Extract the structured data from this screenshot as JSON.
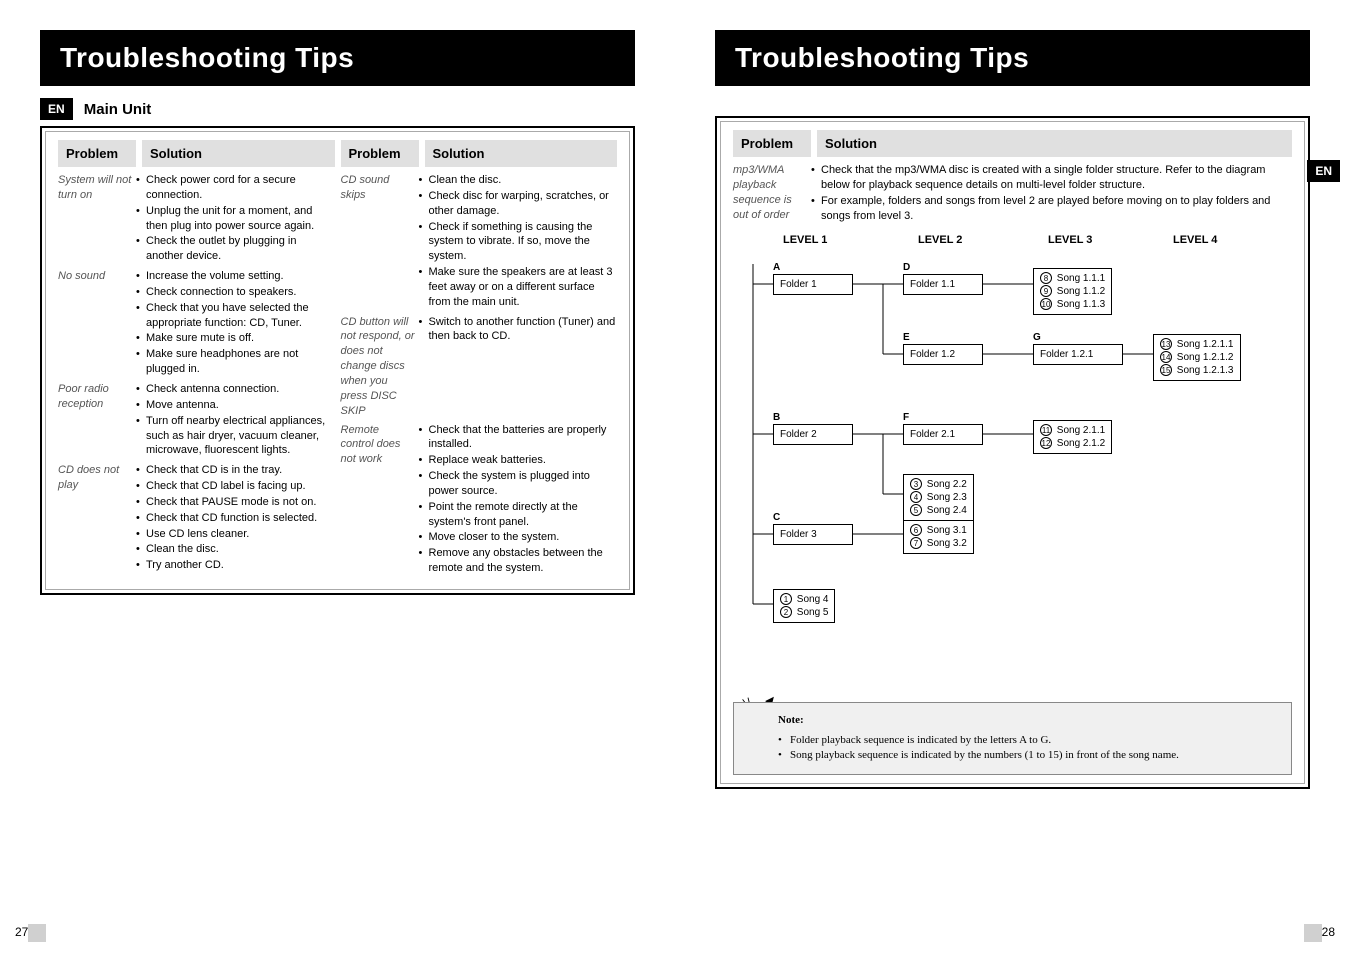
{
  "titles": {
    "left": "Troubleshooting Tips",
    "right": "Troubleshooting Tips"
  },
  "lang_badge": "EN",
  "section_main_unit": "Main Unit",
  "col_head_problem": "Problem",
  "col_head_solution": "Solution",
  "left_col1": [
    {
      "p": "System will not turn on",
      "s": [
        "Check power cord for a secure connection.",
        "Unplug the unit for a moment, and then plug into power source again.",
        "Check the outlet by plugging in another device."
      ]
    },
    {
      "p": "No sound",
      "s": [
        "Increase the volume setting.",
        "Check connection to speakers.",
        "Check that you have selected the appropriate function: CD, Tuner.",
        "Make sure mute is off.",
        "Make sure headphones are not plugged in."
      ]
    },
    {
      "p": "Poor radio reception",
      "s": [
        "Check antenna connection.",
        "Move antenna.",
        "Turn off nearby electrical appliances, such as hair dryer, vacuum cleaner, microwave, fluorescent lights."
      ]
    },
    {
      "p": "CD does not play",
      "s": [
        "Check that CD is in the tray.",
        "Check that CD label is facing up.",
        "Check that PAUSE mode is not on.",
        "Check that CD function is selected.",
        "Use CD lens cleaner.",
        "Clean the disc.",
        "Try another CD."
      ]
    }
  ],
  "left_col2": [
    {
      "p": "CD sound skips",
      "s": [
        "Clean the disc.",
        "Check disc for warping, scratches, or other damage.",
        "Check if something is causing the system to  vibrate. If so, move the  system.",
        "Make sure the speakers are at least 3 feet away or on a different surface from the main unit."
      ]
    },
    {
      "p": "CD button will not respond, or does not change discs when you press DISC SKIP",
      "s": [
        "Switch to another function (Tuner) and then back to CD."
      ]
    },
    {
      "p": "Remote control does not work",
      "s": [
        "Check that the batteries are properly installed.",
        "Replace weak batteries.",
        "Check the system is plugged into power source.",
        "Point the remote directly at the system's front panel.",
        "Move closer to the system.",
        "Remove any obstacles between the remote and the system."
      ]
    }
  ],
  "right_problem": "mp3/WMA playback sequence is out of order",
  "right_solution": [
    "Check that the mp3/WMA disc is created with a single folder structure. Refer to the diagram below for playback sequence details on multi-level folder structure.",
    "For example, folders and songs from level 2 are played before moving on to play folders and songs from level 3."
  ],
  "levels": {
    "l1": "LEVEL 1",
    "l2": "LEVEL 2",
    "l3": "LEVEL 3",
    "l4": "LEVEL 4"
  },
  "diagram": {
    "letters": {
      "A": "A",
      "B": "B",
      "C": "C",
      "D": "D",
      "E": "E",
      "F": "F",
      "G": "G"
    },
    "folder1": "Folder 1",
    "folder2": "Folder 2",
    "folder3": "Folder 3",
    "folder11": "Folder 1.1",
    "folder12": "Folder 1.2",
    "folder21": "Folder 2.1",
    "folder121": "Folder 1.2.1",
    "songs_111": [
      {
        "n": "8",
        "t": "Song 1.1.1"
      },
      {
        "n": "9",
        "t": "Song 1.1.2"
      },
      {
        "n": "10",
        "t": "Song 1.1.3"
      }
    ],
    "songs_1211": [
      {
        "n": "13",
        "t": "Song 1.2.1.1"
      },
      {
        "n": "14",
        "t": "Song 1.2.1.2"
      },
      {
        "n": "15",
        "t": "Song 1.2.1.3"
      }
    ],
    "songs_211": [
      {
        "n": "11",
        "t": "Song 2.1.1"
      },
      {
        "n": "12",
        "t": "Song 2.1.2"
      }
    ],
    "songs_22": [
      {
        "n": "3",
        "t": "Song 2.2"
      },
      {
        "n": "4",
        "t": "Song 2.3"
      },
      {
        "n": "5",
        "t": "Song 2.4"
      }
    ],
    "songs_31": [
      {
        "n": "6",
        "t": "Song 3.1"
      },
      {
        "n": "7",
        "t": "Song 3.2"
      }
    ],
    "songs_4": [
      {
        "n": "1",
        "t": "Song 4"
      },
      {
        "n": "2",
        "t": "Song 5"
      }
    ]
  },
  "note": {
    "title": "Note:",
    "lines": [
      "Folder playback sequence is indicated by the letters A to G.",
      "Song playback sequence is indicated by the numbers (1 to 15) in front of the song name."
    ]
  },
  "page_l": "27",
  "page_r": "28"
}
